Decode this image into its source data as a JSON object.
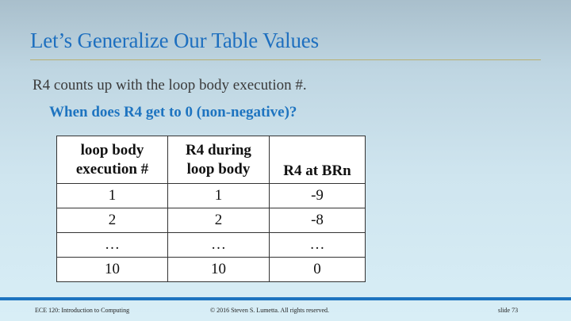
{
  "slide": {
    "title": "Let’s Generalize Our Table Values",
    "point": "R4 counts up with the loop body execution #.",
    "subpoint": "When does R4 get to 0 (non-negative)?"
  },
  "table": {
    "headers": [
      [
        "loop body",
        "execution #"
      ],
      [
        "R4 during",
        "loop body"
      ],
      [
        "R4 at BRn"
      ]
    ],
    "rows": [
      [
        "1",
        "1",
        "-9"
      ],
      [
        "2",
        "2",
        "-8"
      ],
      [
        "…",
        "…",
        "…"
      ],
      [
        "10",
        "10",
        "0"
      ]
    ]
  },
  "footer": {
    "course": "ECE 120: Introduction to Computing",
    "copyright": "© 2016 Steven S. Lumetta.  All rights reserved.",
    "slide_number": "slide 73"
  },
  "colors": {
    "title": "#1e6fbf",
    "accent": "#1e74c0",
    "rule": "#b7b070"
  }
}
